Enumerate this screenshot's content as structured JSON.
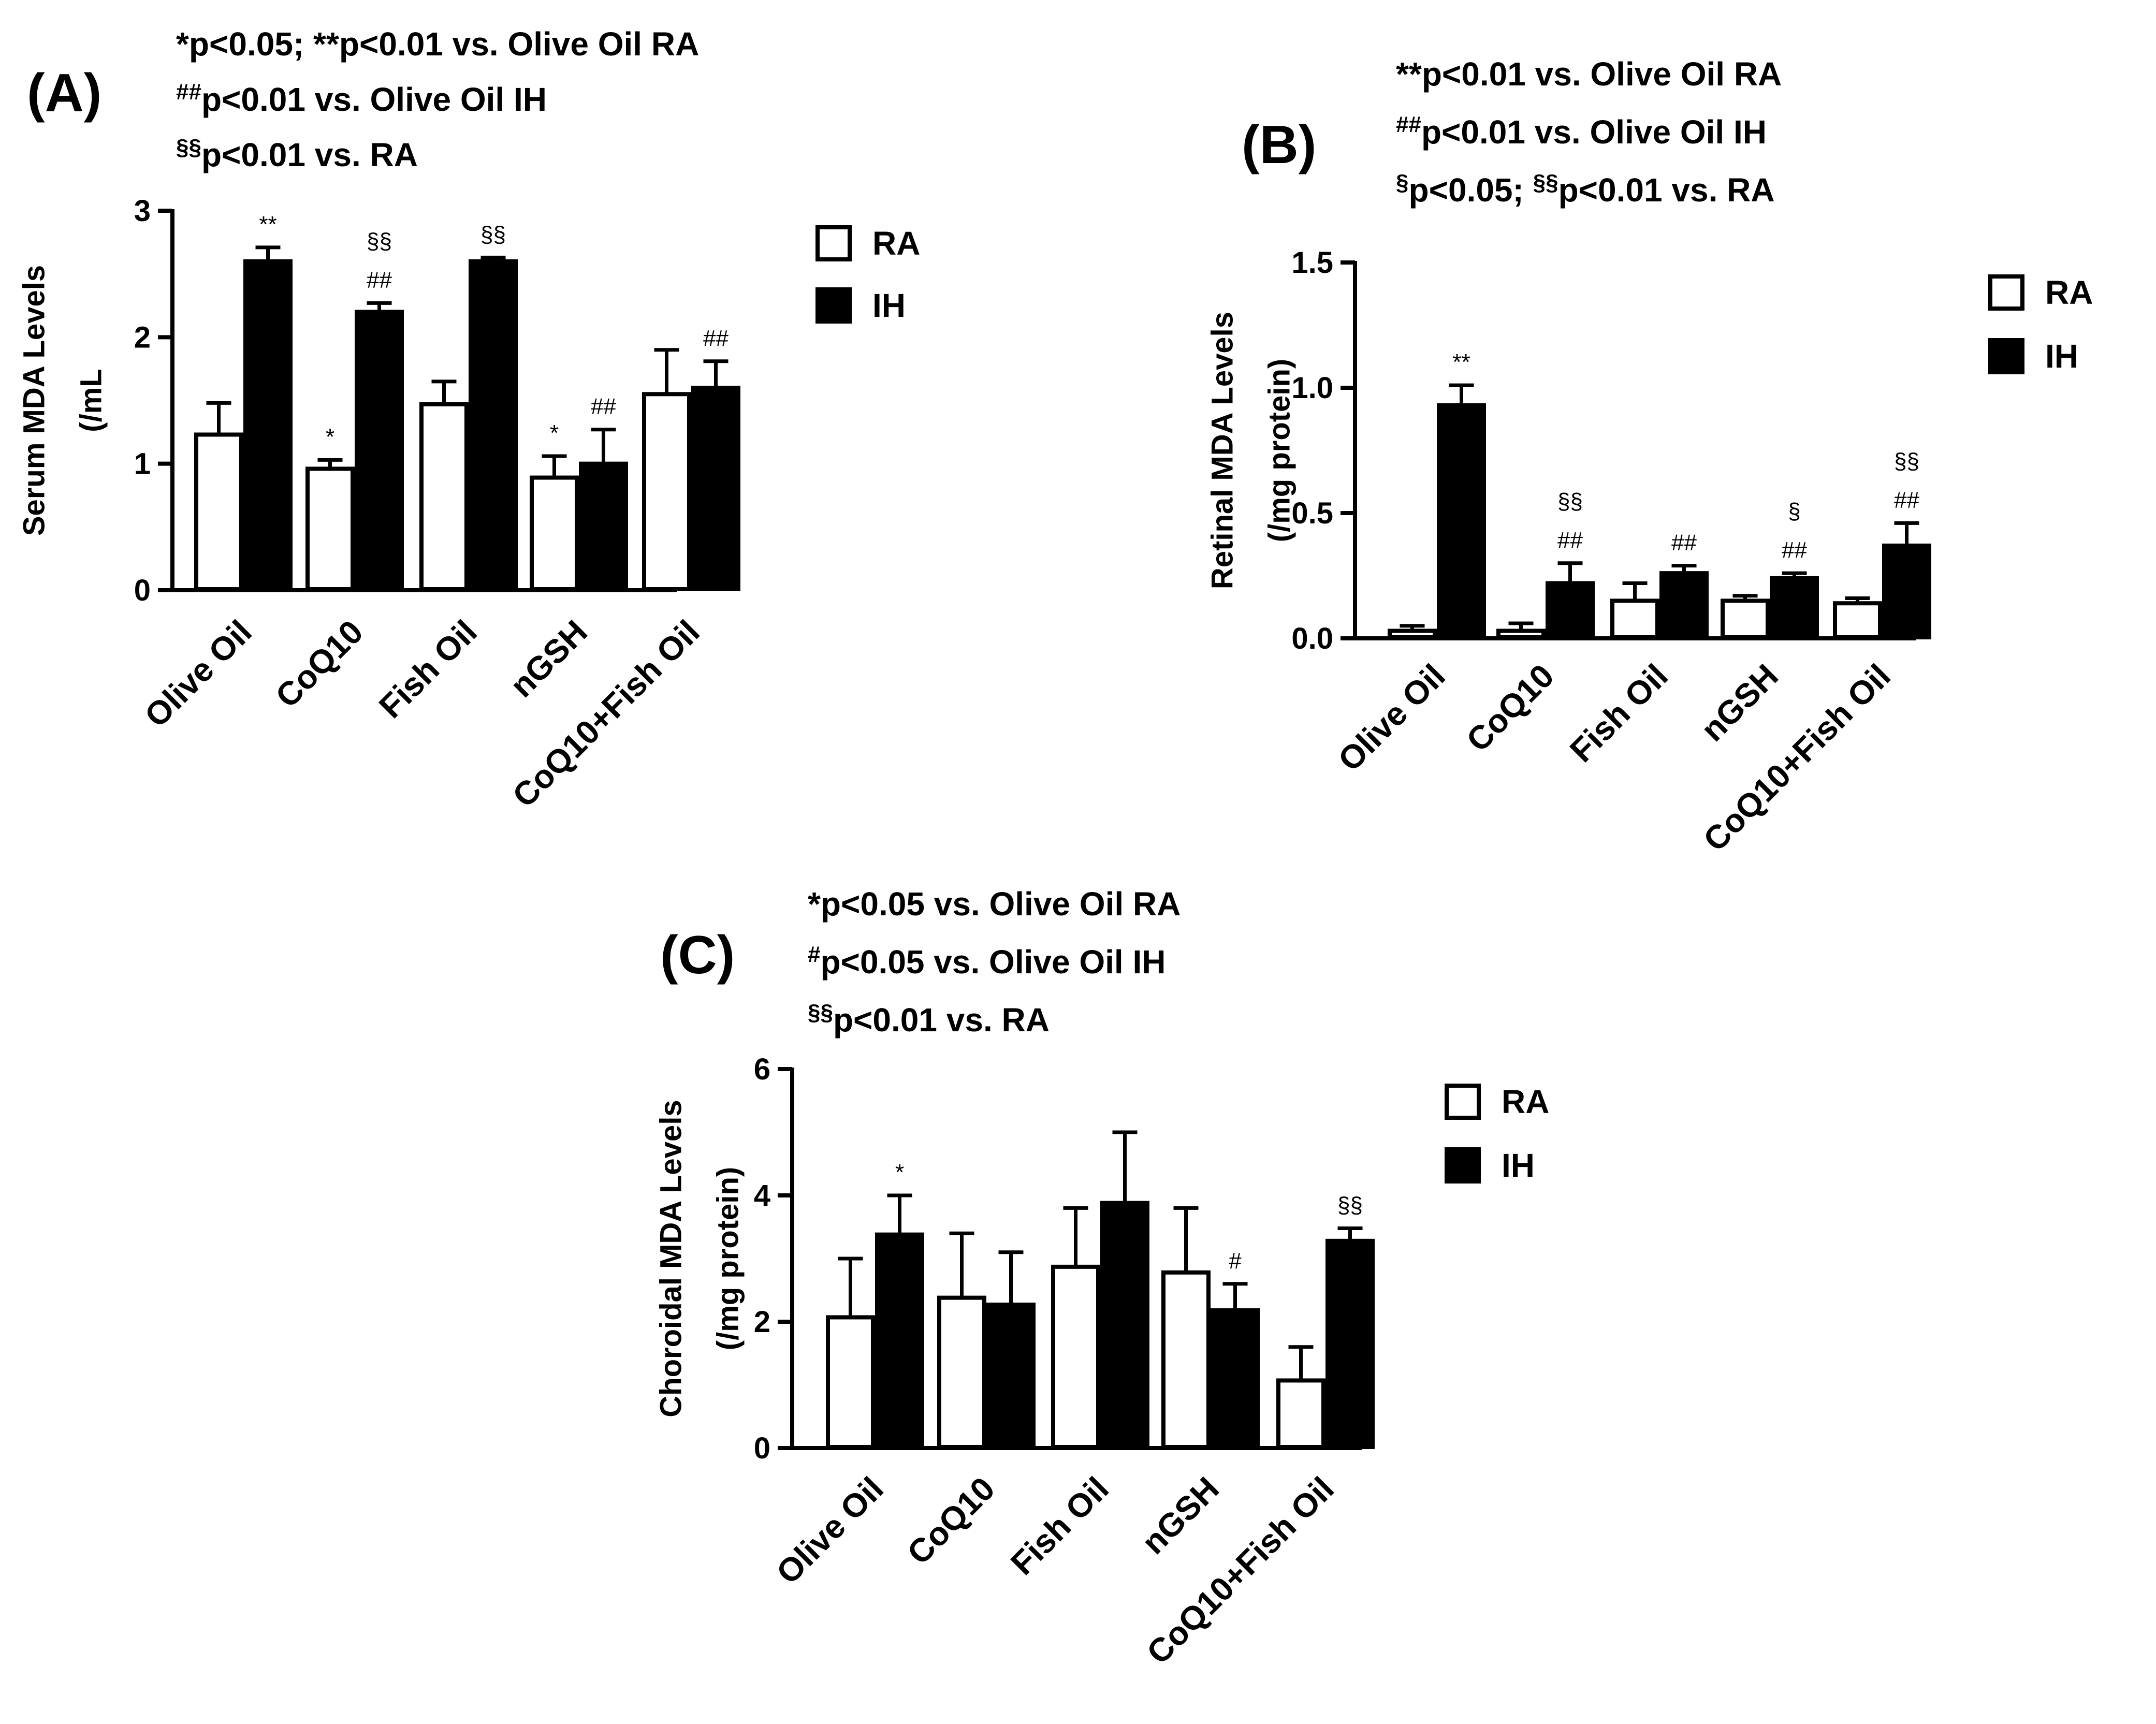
{
  "chart_data": [
    {
      "type": "bar",
      "panel_label": "(A)",
      "stats": [
        {
          "sup": "",
          "text": "*p<0.05; **p<0.01 vs. Olive Oil RA"
        },
        {
          "sup": "##",
          "text": "p<0.01 vs. Olive Oil IH"
        },
        {
          "sup": "§§",
          "text": "p<0.01 vs. RA"
        }
      ],
      "ylabel_lines": [
        "Serum MDA Levels",
        "(/mL"
      ],
      "categories": [
        "Olive Oil",
        "CoQ10",
        "Fish Oil",
        "nGSH",
        "CoQ10+Fish Oil"
      ],
      "ylim": [
        0,
        3
      ],
      "yticks": [
        0,
        1,
        2,
        3
      ],
      "ytick_labels": [
        "0",
        "1",
        "2",
        "3"
      ],
      "series": [
        {
          "name": "RA",
          "fill": "#ffffff",
          "values": [
            1.23,
            0.96,
            1.47,
            0.89,
            1.55
          ],
          "errors": [
            0.25,
            0.07,
            0.18,
            0.17,
            0.35
          ],
          "sig": [
            "",
            "*",
            "",
            "*",
            ""
          ]
        },
        {
          "name": "IH",
          "fill": "#000000",
          "values": [
            2.6,
            2.2,
            2.6,
            1.0,
            1.6
          ],
          "errors": [
            0.11,
            0.07,
            0.03,
            0.27,
            0.21
          ],
          "sig": [
            "**",
            "§§|##",
            "§§",
            "##",
            "##"
          ]
        }
      ],
      "legend": "right"
    },
    {
      "type": "bar",
      "panel_label": "(B)",
      "stats": [
        {
          "sup": "",
          "text": "**p<0.01 vs. Olive Oil RA"
        },
        {
          "sup": "##",
          "text": "p<0.01 vs. Olive Oil IH"
        },
        {
          "sup": "§",
          "text": "p<0.05; ",
          "sup2": "§§",
          "text2": "p<0.01 vs. RA"
        }
      ],
      "ylabel_lines": [
        "Retinal MDA Levels",
        "(/mg protein)"
      ],
      "categories": [
        "Olive Oil",
        "CoQ10",
        "Fish Oil",
        "nGSH",
        "CoQ10+Fish Oil"
      ],
      "ylim": [
        0,
        1.5
      ],
      "yticks": [
        0,
        0.5,
        1.0,
        1.5
      ],
      "ytick_labels": [
        "0.0",
        "0.5",
        "1.0",
        "1.5"
      ],
      "series": [
        {
          "name": "RA",
          "fill": "#ffffff",
          "values": [
            0.03,
            0.03,
            0.15,
            0.15,
            0.14
          ],
          "errors": [
            0.02,
            0.03,
            0.07,
            0.02,
            0.02
          ],
          "sig": [
            "",
            "",
            "",
            "",
            ""
          ]
        },
        {
          "name": "IH",
          "fill": "#000000",
          "values": [
            0.93,
            0.22,
            0.26,
            0.24,
            0.37
          ],
          "errors": [
            0.08,
            0.08,
            0.03,
            0.02,
            0.09
          ],
          "sig": [
            "**",
            "§§|##",
            "##",
            "§|##",
            "§§|##"
          ]
        }
      ],
      "legend": "right"
    },
    {
      "type": "bar",
      "panel_label": "(C)",
      "stats": [
        {
          "sup": "",
          "text": "*p<0.05 vs. Olive Oil RA"
        },
        {
          "sup": "#",
          "text": "p<0.05 vs. Olive Oil IH"
        },
        {
          "sup": "§§",
          "text": "p<0.01 vs. RA"
        }
      ],
      "ylabel_lines": [
        "Choroidal MDA Levels",
        "(/mg protein)"
      ],
      "categories": [
        "Olive Oil",
        "CoQ10",
        "Fish Oil",
        "nGSH",
        "CoQ10+Fish Oil"
      ],
      "ylim": [
        0,
        6
      ],
      "yticks": [
        0,
        2,
        4,
        6
      ],
      "ytick_labels": [
        "0",
        "2",
        "4",
        "6"
      ],
      "series": [
        {
          "name": "RA",
          "fill": "#ffffff",
          "values": [
            2.07,
            2.38,
            2.87,
            2.78,
            1.07
          ],
          "errors": [
            0.93,
            1.02,
            0.93,
            1.02,
            0.53
          ],
          "sig": [
            "",
            "",
            "",
            "",
            ""
          ]
        },
        {
          "name": "IH",
          "fill": "#000000",
          "values": [
            3.38,
            2.27,
            3.88,
            2.18,
            3.28
          ],
          "errors": [
            0.62,
            0.83,
            1.12,
            0.42,
            0.2
          ],
          "sig": [
            "*",
            "",
            "",
            "#",
            "§§"
          ]
        }
      ],
      "legend": "right"
    }
  ]
}
